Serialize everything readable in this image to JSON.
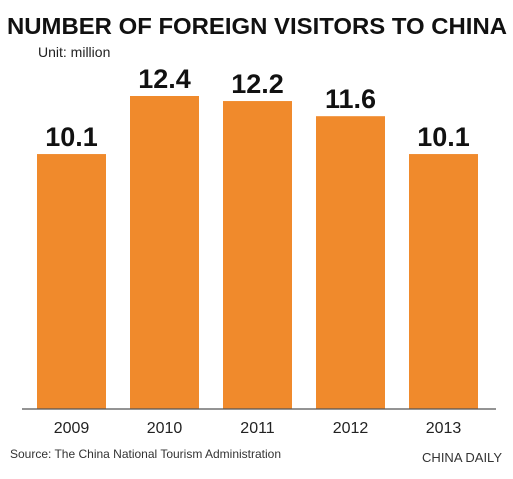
{
  "colors": {
    "bar": "#f08a2c",
    "baseline": "#555555",
    "text": "#111111"
  },
  "chart_data": {
    "type": "bar",
    "title": "NUMBER OF FOREIGN VISITORS TO CHINA",
    "unit": "Unit: million",
    "categories": [
      "2009",
      "2010",
      "2011",
      "2012",
      "2013"
    ],
    "values": [
      10.1,
      12.4,
      12.2,
      11.6,
      10.1
    ],
    "value_labels": [
      "10.1",
      "12.4",
      "12.2",
      "11.6",
      "10.1"
    ],
    "ylim": [
      0,
      12.4
    ],
    "grid": false,
    "legend": "none",
    "xlabel": "",
    "ylabel": ""
  },
  "footer": {
    "source": "Source: The China National Tourism Administration",
    "credit": "CHINA DAILY"
  }
}
